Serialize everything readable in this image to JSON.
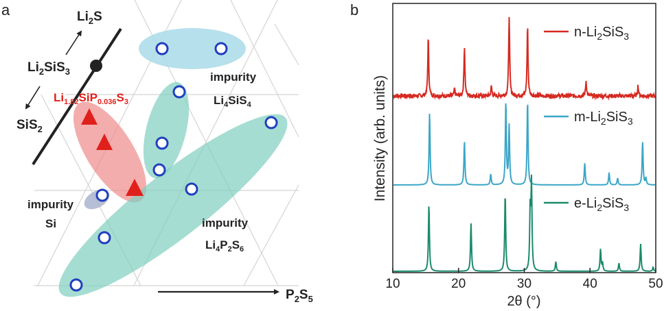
{
  "panel_a": {
    "letter": "a",
    "li2s": {
      "main": "Li",
      "sub1": "2",
      "rest": "S"
    },
    "li2sis3": {
      "main": "Li",
      "sub1": "2",
      "rest": "SiS",
      "sub2": "3"
    },
    "sis2": {
      "main": "SiS",
      "sub1": "2"
    },
    "li182": {
      "p1": "Li",
      "s1": "1.82",
      "p2": "SiP",
      "s2": "0.036",
      "p3": "S",
      "s3": "3"
    },
    "impurity_word": "impurity",
    "li4sis4": {
      "p1": "Li",
      "s1": "4",
      "p2": "SiS",
      "s2": "4"
    },
    "si": "Si",
    "li4p2s6": {
      "p1": "Li",
      "s1": "4",
      "p2": "P",
      "s2": "2",
      "p3": "S",
      "s3": "6"
    },
    "p2s5": {
      "p1": "P",
      "s1": "2",
      "p2": "S",
      "s2": "5"
    },
    "colors": {
      "circle": "#1f3fbf",
      "triangle": "#e0201b",
      "red_region": "#f08a8a",
      "teal_region": "#7fcfbf",
      "blue_region": "#a9dbe9",
      "si_region": "#aab4cf"
    }
  },
  "chart_data": {
    "type": "line",
    "title": "",
    "xlabel": "2θ (°)",
    "ylabel": "Intensity (arb. units)",
    "xlim": [
      10,
      50
    ],
    "xticks": [
      10,
      20,
      30,
      40,
      50
    ],
    "panel_letter": "b",
    "legend_position": "right-of-each-trace",
    "series": [
      {
        "name": "n-Li2SiS3",
        "legend": {
          "p1": "n-Li",
          "s1": "2",
          "p2": "SiS",
          "s2": "3"
        },
        "color": "#d62a21",
        "baseline": 140,
        "noise": 3,
        "peaks": [
          [
            15.4,
            85
          ],
          [
            19.4,
            10
          ],
          [
            20.9,
            72
          ],
          [
            25.0,
            14
          ],
          [
            27.7,
            118
          ],
          [
            30.5,
            102
          ],
          [
            39.4,
            22
          ],
          [
            47.3,
            15
          ]
        ]
      },
      {
        "name": "m-Li2SiS3",
        "legend": {
          "p1": "m-Li",
          "s1": "2",
          "p2": "SiS",
          "s2": "3"
        },
        "color": "#3aa6c8",
        "baseline": 270,
        "noise": 0,
        "peaks": [
          [
            15.6,
            106
          ],
          [
            20.9,
            64
          ],
          [
            24.9,
            16
          ],
          [
            27.2,
            122
          ],
          [
            27.7,
            86
          ],
          [
            30.5,
            124
          ],
          [
            39.2,
            32
          ],
          [
            42.9,
            18
          ],
          [
            44.2,
            10
          ],
          [
            48.0,
            64
          ],
          [
            48.5,
            10
          ]
        ]
      },
      {
        "name": "e-Li2SiS3",
        "legend": {
          "p1": "e-Li",
          "s1": "2",
          "p2": "SiS",
          "s2": "3"
        },
        "color": "#1a8a6a",
        "baseline": 396,
        "noise": 0,
        "peaks": [
          [
            15.5,
            98
          ],
          [
            21.9,
            70
          ],
          [
            27.1,
            114
          ],
          [
            30.9,
            88
          ],
          [
            31.1,
            126
          ],
          [
            34.8,
            14
          ],
          [
            41.6,
            32
          ],
          [
            41.9,
            12
          ],
          [
            44.4,
            12
          ],
          [
            47.7,
            40
          ],
          [
            49.6,
            6
          ]
        ]
      }
    ]
  }
}
